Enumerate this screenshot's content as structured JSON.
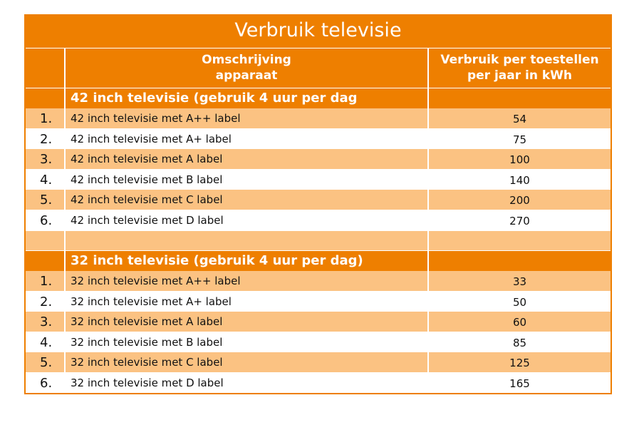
{
  "title": "Verbruik televisie",
  "header": {
    "desc_line1": "Omschrijving",
    "desc_line2": "apparaat",
    "val_line1": "Verbruik per toestellen",
    "val_line2": "per jaar in kWh"
  },
  "sections": [
    {
      "heading": "42 inch televisie (gebruik 4 uur per dag",
      "rows": [
        {
          "num": "1.",
          "desc": "42 inch televisie met A++ label",
          "value": "54"
        },
        {
          "num": "2.",
          "desc": "42 inch televisie met A+ label",
          "value": "75"
        },
        {
          "num": "3.",
          "desc": "42 inch televisie met A label",
          "value": "100"
        },
        {
          "num": "4.",
          "desc": "42 inch televisie met B label",
          "value": "140"
        },
        {
          "num": "5.",
          "desc": "42 inch televisie met C label",
          "value": "200"
        },
        {
          "num": "6.",
          "desc": "42 inch televisie met D label",
          "value": "270"
        }
      ]
    },
    {
      "heading": "32 inch televisie (gebruik 4 uur per dag)",
      "rows": [
        {
          "num": "1.",
          "desc": "32 inch televisie met A++ label",
          "value": "33"
        },
        {
          "num": "2.",
          "desc": "32 inch televisie met A+ label",
          "value": "50"
        },
        {
          "num": "3.",
          "desc": "32 inch televisie met A label",
          "value": "60"
        },
        {
          "num": "4.",
          "desc": "32 inch televisie met B label",
          "value": "85"
        },
        {
          "num": "5.",
          "desc": "32 inch televisie met C label",
          "value": "125"
        },
        {
          "num": "6.",
          "desc": "32 inch televisie met D label",
          "value": "165"
        }
      ]
    }
  ],
  "colors": {
    "accent": "#ee7f00",
    "row_highlight": "#fbc282",
    "row_plain": "#ffffff"
  }
}
